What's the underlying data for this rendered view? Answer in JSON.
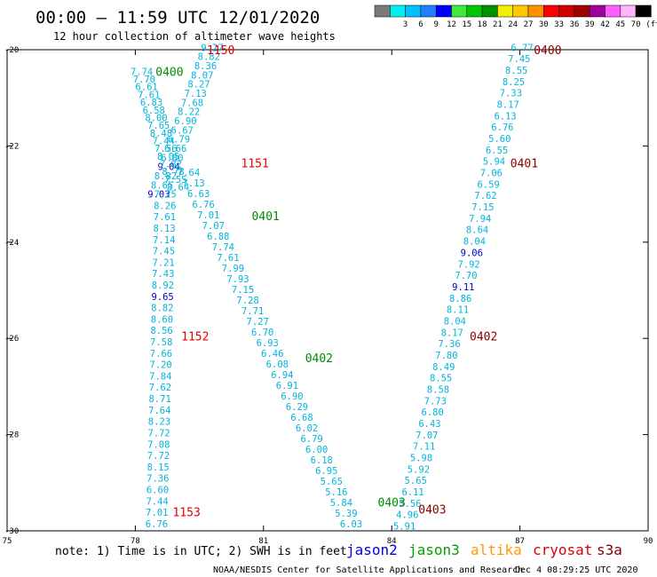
{
  "header": {
    "title": "00:00 – 11:59 UTC 12/01/2020",
    "subtitle": "12 hour collection of altimeter wave heights"
  },
  "legend": {
    "unit": "(ft)",
    "swatches": [
      {
        "color": "#7a7a7a",
        "label": ""
      },
      {
        "color": "#00f0f0",
        "label": "3"
      },
      {
        "color": "#00c0ff",
        "label": "6"
      },
      {
        "color": "#2080ff",
        "label": "9"
      },
      {
        "color": "#0000ff",
        "label": "12"
      },
      {
        "color": "#40e840",
        "label": "15"
      },
      {
        "color": "#00c800",
        "label": "18"
      },
      {
        "color": "#009000",
        "label": "21"
      },
      {
        "color": "#f0f000",
        "label": "24"
      },
      {
        "color": "#ffc800",
        "label": "27"
      },
      {
        "color": "#ff9000",
        "label": "30"
      },
      {
        "color": "#ff0000",
        "label": "33"
      },
      {
        "color": "#d00000",
        "label": "36"
      },
      {
        "color": "#a00000",
        "label": "39"
      },
      {
        "color": "#a000a0",
        "label": "42"
      },
      {
        "color": "#ff60ff",
        "label": "45"
      },
      {
        "color": "#ffb4ff",
        "label": "70"
      },
      {
        "color": "#000000",
        "label": ""
      }
    ]
  },
  "axes": {
    "x_ticks": [
      "75",
      "78",
      "81",
      "84",
      "87",
      "90"
    ],
    "y_ticks": [
      "-20",
      "-22",
      "-24",
      "-26",
      "-28",
      "-30"
    ]
  },
  "colors": {
    "cyan": "#00b4dc",
    "blue": "#0000c8",
    "green": "#008c00",
    "red": "#e60000",
    "maroon": "#8c0000"
  },
  "tracks": [
    {
      "name": "track-a",
      "start_lon": 79.8,
      "start_lat": -19.95,
      "end_lon": 78.55,
      "end_lat": -23.0,
      "values": [
        "9.27",
        "8.82",
        "8.36",
        "8.07",
        "8.27",
        "7.13",
        "7.68",
        "8.22",
        "6.90",
        "6.67",
        "6.79",
        "6.66",
        "6.80",
        "9.04",
        "8.82",
        "8.65",
        "9.03"
      ],
      "highlight": {
        "9.04": "blue",
        "9.03": "blue"
      }
    },
    {
      "name": "track-b",
      "start_lon": 78.15,
      "start_lat": -20.45,
      "end_lon": 79.0,
      "end_lat": -22.85,
      "values": [
        "7.74",
        "7.70",
        "6.61",
        "7.61",
        "6.83",
        "6.58",
        "8.00",
        "7.65",
        "8.48",
        "7.44",
        "7.56",
        "8.05",
        "7.82",
        "8.78",
        "7.55",
        "8.64"
      ],
      "highlight": {}
    },
    {
      "name": "track-c",
      "start_lon": 78.7,
      "start_lat": -23.0,
      "end_lon": 78.5,
      "end_lat": -29.85,
      "values": [
        "7.25",
        "8.26",
        "7.61",
        "8.13",
        "7.14",
        "7.45",
        "7.21",
        "7.43",
        "8.92",
        "9.65",
        "8.82",
        "8.60",
        "8.56",
        "7.58",
        "7.66",
        "7.20",
        "7.84",
        "7.62",
        "8.71",
        "7.64",
        "8.23",
        "7.72",
        "7.08",
        "7.72",
        "8.15",
        "7.36",
        "6.60",
        "7.44",
        "7.01",
        "6.76"
      ],
      "highlight": {
        "9.65": "blue"
      }
    },
    {
      "name": "track-d",
      "start_lon": 79.25,
      "start_lat": -22.55,
      "end_lon": 83.05,
      "end_lat": -29.85,
      "values": [
        "7.64",
        "7.13",
        "6.63",
        "6.76",
        "7.01",
        "7.07",
        "6.88",
        "7.74",
        "7.61",
        "7.99",
        "7.93",
        "7.15",
        "7.28",
        "7.71",
        "7.27",
        "6.70",
        "6.93",
        "6.46",
        "6.08",
        "6.94",
        "6.91",
        "6.90",
        "6.29",
        "6.68",
        "6.02",
        "6.79",
        "6.00",
        "6.18",
        "6.95",
        "5.65",
        "5.16",
        "5.84",
        "5.39",
        "6.03"
      ],
      "highlight": {}
    },
    {
      "name": "track-e",
      "start_lon": 87.05,
      "start_lat": -19.95,
      "end_lon": 84.3,
      "end_lat": -29.9,
      "values": [
        "6.77",
        "7.45",
        "8.55",
        "8.25",
        "7.33",
        "8.17",
        "6.13",
        "6.76",
        "5.60",
        "6.55",
        "5.94",
        "7.06",
        "6.59",
        "7.62",
        "7.15",
        "7.94",
        "8.64",
        "8.04",
        "9.06",
        "7.92",
        "7.70",
        "9.11",
        "8.86",
        "8.11",
        "8.04",
        "8.17",
        "7.36",
        "7.80",
        "8.49",
        "8.55",
        "8.58",
        "7.73",
        "6.80",
        "6.43",
        "7.07",
        "7.11",
        "5.98",
        "5.92",
        "5.65",
        "6.11",
        "5.56",
        "4.96",
        "5.91"
      ],
      "highlight": {
        "9.06": "blue",
        "9.11": "blue"
      }
    }
  ],
  "pass_labels": [
    {
      "text": "1150",
      "lon": 80.0,
      "lat": -20.0,
      "color": "red"
    },
    {
      "text": "0400",
      "lon": 78.8,
      "lat": -20.45,
      "color": "green"
    },
    {
      "text": "1151",
      "lon": 80.8,
      "lat": -22.35,
      "color": "red"
    },
    {
      "text": "0401",
      "lon": 81.05,
      "lat": -23.45,
      "color": "green"
    },
    {
      "text": "1152",
      "lon": 79.4,
      "lat": -25.95,
      "color": "red"
    },
    {
      "text": "0402",
      "lon": 82.3,
      "lat": -26.4,
      "color": "green"
    },
    {
      "text": "0403",
      "lon": 84.0,
      "lat": -29.4,
      "color": "green"
    },
    {
      "text": "1153",
      "lon": 79.2,
      "lat": -29.6,
      "color": "red"
    },
    {
      "text": "0400",
      "lon": 87.65,
      "lat": -20.0,
      "color": "maroon"
    },
    {
      "text": "0401",
      "lon": 87.1,
      "lat": -22.35,
      "color": "maroon"
    },
    {
      "text": "0402",
      "lon": 86.15,
      "lat": -25.95,
      "color": "maroon"
    },
    {
      "text": "0403",
      "lon": 84.95,
      "lat": -29.55,
      "color": "maroon"
    }
  ],
  "footer": {
    "note": "note: 1) Time is in UTC; 2) SWH is in feet",
    "satellites": [
      {
        "label": "jason2",
        "color": "#0000e0"
      },
      {
        "label": "jason3",
        "color": "#00a000"
      },
      {
        "label": "altika",
        "color": "#ff9900"
      },
      {
        "label": "cryosat",
        "color": "#dd0000"
      },
      {
        "label": "s3a",
        "color": "#880000"
      }
    ],
    "credit": "NOAA/NESDIS Center for Satellite Applications and Research",
    "timestamp": "Dec  4 08:29:25 UTC 2020"
  }
}
